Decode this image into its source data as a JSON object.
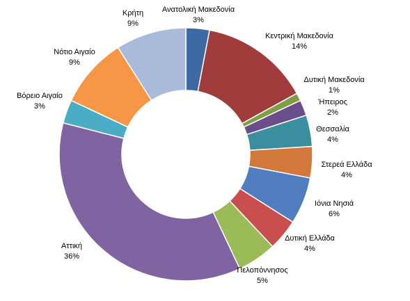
{
  "chart_data": {
    "type": "pie",
    "donut": true,
    "title": "",
    "legend": "none",
    "slices": [
      {
        "label": "Ανατολική Μακεδονία",
        "value": 3,
        "display": "3%",
        "color": "#3D6AA4"
      },
      {
        "label": "Κεντρική Μακεδονία",
        "value": 14,
        "display": "14%",
        "color": "#A03C3C"
      },
      {
        "label": "Δυτική Μακεδονία",
        "value": 1,
        "display": "1%",
        "color": "#7F9E45"
      },
      {
        "label": "Ήπειρος",
        "value": 2,
        "display": "2%",
        "color": "#6A4E8A"
      },
      {
        "label": "Θεσσαλία",
        "value": 4,
        "display": "4%",
        "color": "#3A8E9E"
      },
      {
        "label": "Στερεά Ελλάδα",
        "value": 4,
        "display": "4%",
        "color": "#D2783A"
      },
      {
        "label": "Ιόνια Νησιά",
        "value": 6,
        "display": "6%",
        "color": "#4F7DC0"
      },
      {
        "label": "Δυτική Ελλάδα",
        "value": 4,
        "display": "4%",
        "color": "#C94E4E"
      },
      {
        "label": "Πελοπόννησος",
        "value": 5,
        "display": "5%",
        "color": "#9BBB59"
      },
      {
        "label": "Αττική",
        "value": 36,
        "display": "36%",
        "color": "#8064A2"
      },
      {
        "label": "Βόρειο Αιγαίο",
        "value": 3,
        "display": "3%",
        "color": "#4BACC6"
      },
      {
        "label": "Νότιο Αιγαίο",
        "value": 9,
        "display": "9%",
        "color": "#F79646"
      },
      {
        "label": "Κρήτη",
        "value": 9,
        "display": "9%",
        "color": "#A9BADA"
      }
    ]
  }
}
